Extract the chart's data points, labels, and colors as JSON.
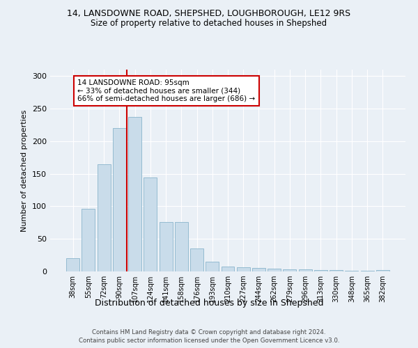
{
  "title_line1": "14, LANSDOWNE ROAD, SHEPSHED, LOUGHBOROUGH, LE12 9RS",
  "title_line2": "Size of property relative to detached houses in Shepshed",
  "xlabel": "Distribution of detached houses by size in Shepshed",
  "ylabel": "Number of detached properties",
  "bar_labels": [
    "38sqm",
    "55sqm",
    "72sqm",
    "90sqm",
    "107sqm",
    "124sqm",
    "141sqm",
    "158sqm",
    "176sqm",
    "193sqm",
    "210sqm",
    "227sqm",
    "244sqm",
    "262sqm",
    "279sqm",
    "296sqm",
    "313sqm",
    "330sqm",
    "348sqm",
    "365sqm",
    "382sqm"
  ],
  "bar_values": [
    20,
    96,
    165,
    220,
    237,
    144,
    76,
    76,
    35,
    15,
    8,
    6,
    5,
    4,
    3,
    3,
    2,
    2,
    1,
    1,
    2
  ],
  "bar_color": "#c9dcea",
  "bar_edge_color": "#8ab4cc",
  "annotation_text": "14 LANSDOWNE ROAD: 95sqm\n← 33% of detached houses are smaller (344)\n66% of semi-detached houses are larger (686) →",
  "annotation_box_color": "#ffffff",
  "annotation_box_edge": "#cc0000",
  "line_color": "#cc0000",
  "ylim": [
    0,
    310
  ],
  "yticks": [
    0,
    50,
    100,
    150,
    200,
    250,
    300
  ],
  "background_color": "#eaf0f6",
  "grid_color": "#ffffff",
  "footer_line1": "Contains HM Land Registry data © Crown copyright and database right 2024.",
  "footer_line2": "Contains public sector information licensed under the Open Government Licence v3.0."
}
